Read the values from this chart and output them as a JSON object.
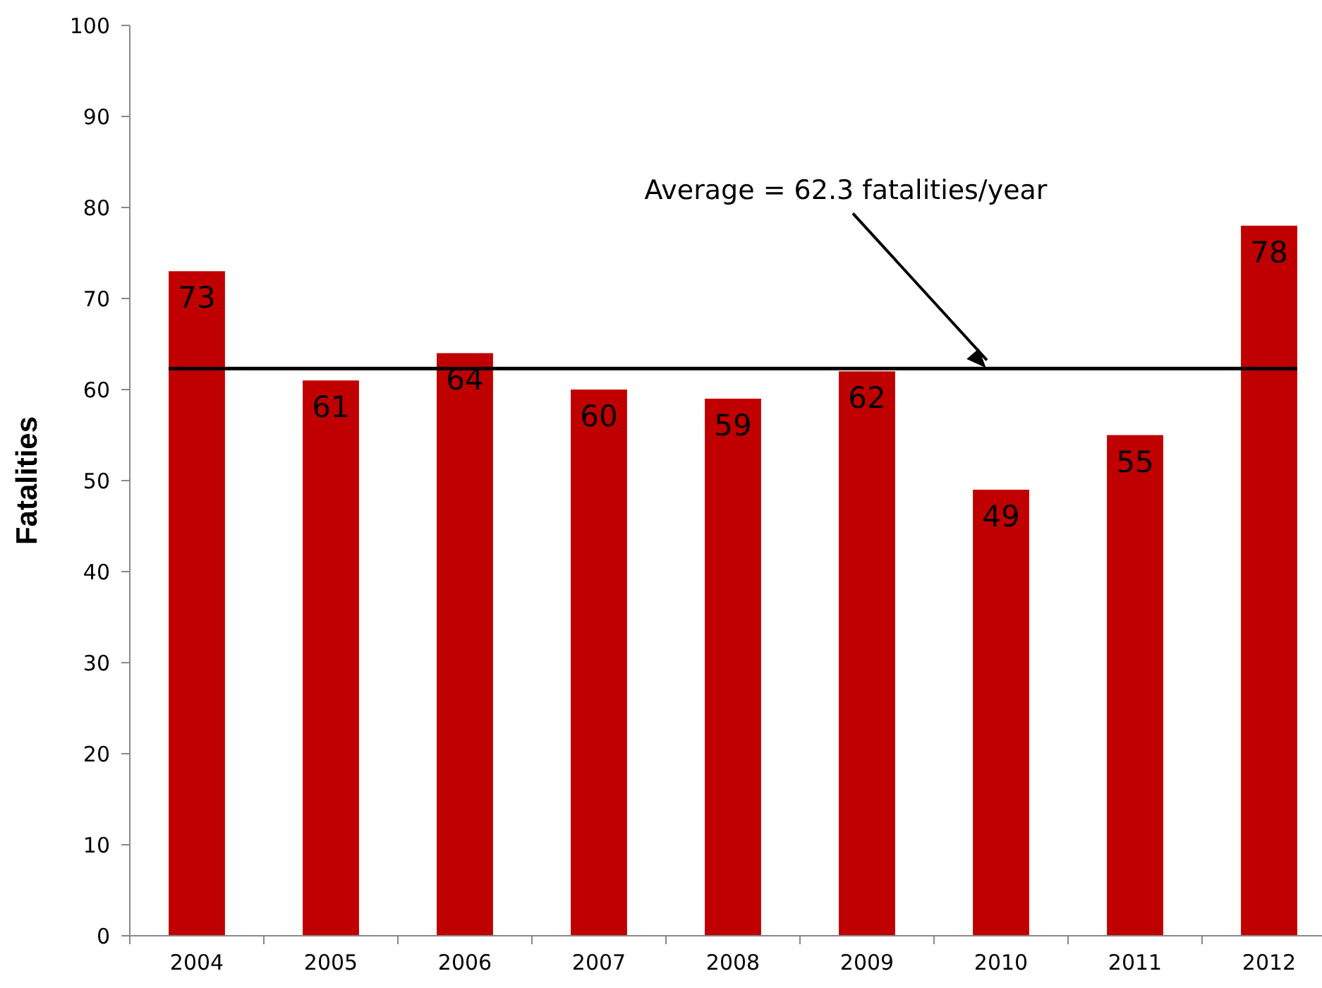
{
  "chart_data": {
    "type": "bar",
    "ylabel": "Fatalities",
    "categories": [
      "2004",
      "2005",
      "2006",
      "2007",
      "2008",
      "2009",
      "2010",
      "2011",
      "2012"
    ],
    "values": [
      73,
      61,
      64,
      60,
      59,
      62,
      49,
      55,
      78
    ],
    "color": "#c00000",
    "ylim": [
      0,
      100
    ],
    "yticks": [
      0,
      10,
      20,
      30,
      40,
      50,
      60,
      70,
      80,
      90,
      100
    ],
    "data_labels": true,
    "grid": false,
    "ref_lines": [
      {
        "axis": "y",
        "value": 62.3,
        "label": "Average = 62.3 fatalities/year",
        "color": "#000000",
        "line_style": "solid"
      }
    ]
  }
}
